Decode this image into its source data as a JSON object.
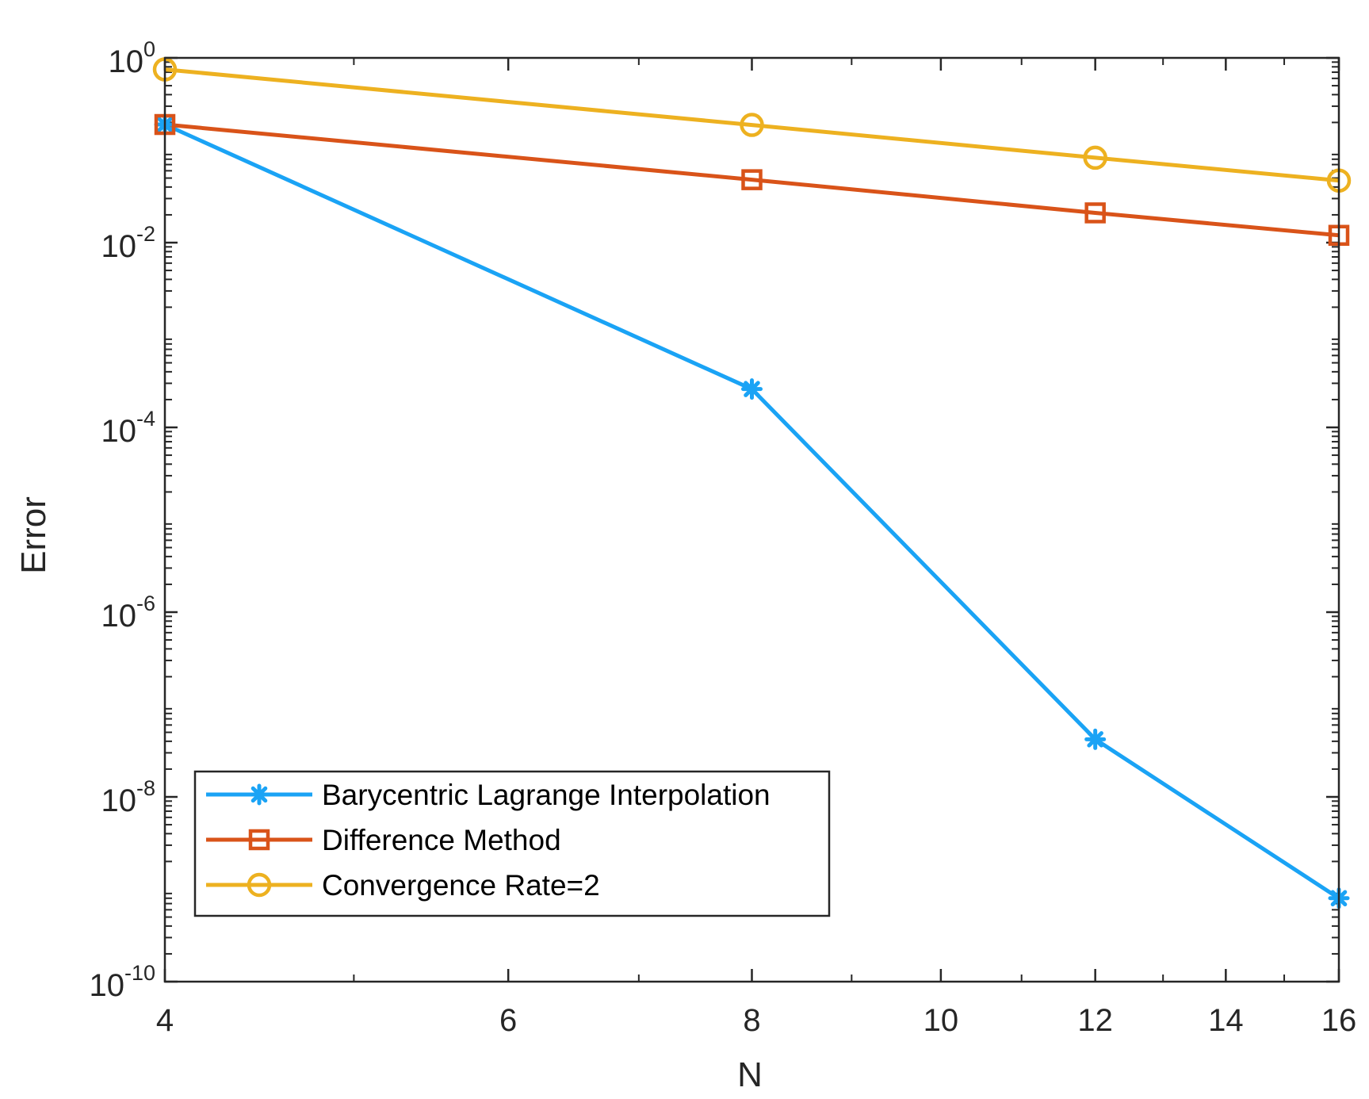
{
  "chart_data": {
    "type": "line",
    "title": "",
    "xlabel": "N",
    "ylabel": "Error",
    "xscale": "log",
    "yscale": "log",
    "xlim": [
      4,
      16
    ],
    "ylim": [
      1e-10,
      1
    ],
    "x": [
      4,
      8,
      12,
      16
    ],
    "xticks": [
      {
        "value": 4,
        "label": "4"
      },
      {
        "value": 6,
        "label": "6"
      },
      {
        "value": 8,
        "label": "8"
      },
      {
        "value": 10,
        "label": "10"
      },
      {
        "value": 12,
        "label": "12"
      },
      {
        "value": 14,
        "label": "14"
      },
      {
        "value": 16,
        "label": "16"
      }
    ],
    "yticks": [
      {
        "value": 1,
        "base": "10",
        "exp": "0"
      },
      {
        "value": 0.01,
        "base": "10",
        "exp": "-2"
      },
      {
        "value": 0.0001,
        "base": "10",
        "exp": "-4"
      },
      {
        "value": 1e-06,
        "base": "10",
        "exp": "-6"
      },
      {
        "value": 1e-08,
        "base": "10",
        "exp": "-8"
      },
      {
        "value": 1e-10,
        "base": "10",
        "exp": "-10"
      }
    ],
    "series": [
      {
        "name": "Barycentric Lagrange Interpolation",
        "color": "#1aa3f5",
        "marker": "asterisk",
        "values": [
          0.19,
          0.00026,
          4.2e-08,
          8e-10
        ]
      },
      {
        "name": "Difference Method",
        "color": "#d95319",
        "marker": "square",
        "values": [
          0.19,
          0.048,
          0.021,
          0.012
        ]
      },
      {
        "name": "Convergence Rate=2",
        "color": "#edb120",
        "marker": "circle",
        "values": [
          0.75,
          0.188,
          0.083,
          0.047
        ]
      }
    ],
    "legend": {
      "position": "bottom-left"
    },
    "grid": false
  }
}
